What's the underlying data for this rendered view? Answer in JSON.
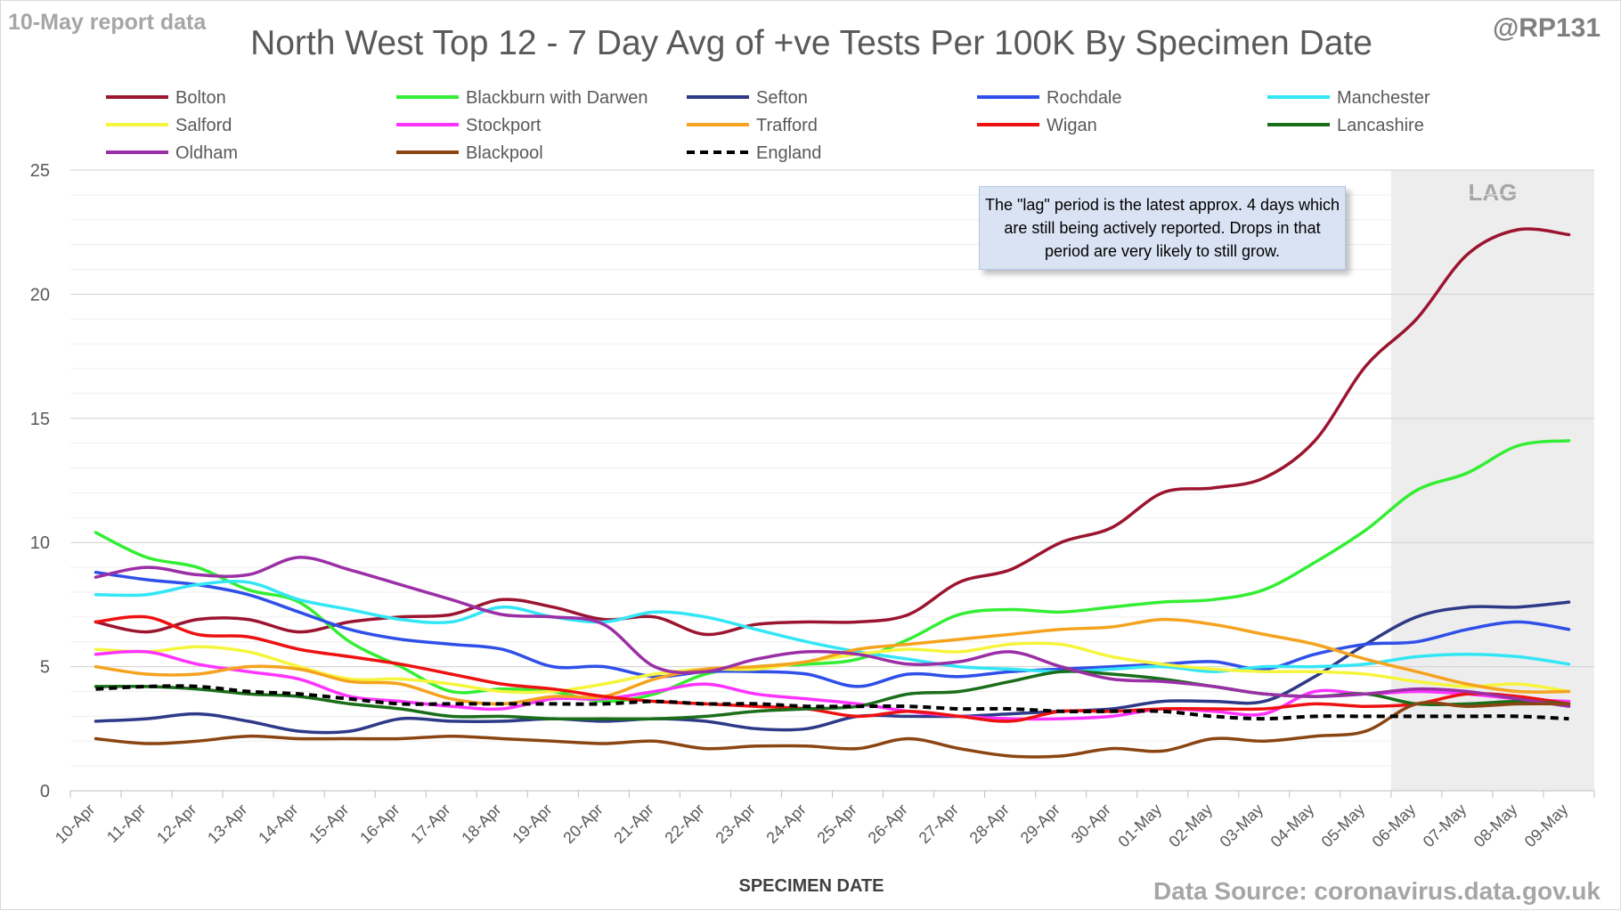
{
  "header": {
    "report_tag": "10-May report data",
    "handle": "@RP131",
    "source": "Data Source: coronavirus.data.gov.uk"
  },
  "note": {
    "text": "The \"lag\" period is the latest approx. 4 days which are still being actively reported.  Drops in that period are very likely to still grow."
  },
  "colors": {
    "grid": "#d9d9d9",
    "axis_text": "#595959",
    "lag_fill": "#ededed",
    "lag_text": "#a6a6a6"
  },
  "chart_data": {
    "type": "line",
    "title": "North West Top 12 - 7 Day Avg of +ve Tests Per 100K By Specimen Date",
    "xlabel": "SPECIMEN DATE",
    "ylabel": "",
    "ylim": [
      0,
      25
    ],
    "yticks": [
      0,
      5,
      10,
      15,
      20,
      25
    ],
    "grid": true,
    "legend_position": "top",
    "lag_label": "LAG",
    "lag_range": [
      "06-May",
      "09-May"
    ],
    "x": [
      "10-Apr",
      "11-Apr",
      "12-Apr",
      "13-Apr",
      "14-Apr",
      "15-Apr",
      "16-Apr",
      "17-Apr",
      "18-Apr",
      "19-Apr",
      "20-Apr",
      "21-Apr",
      "22-Apr",
      "23-Apr",
      "24-Apr",
      "25-Apr",
      "26-Apr",
      "27-Apr",
      "28-Apr",
      "29-Apr",
      "30-Apr",
      "01-May",
      "02-May",
      "03-May",
      "04-May",
      "05-May",
      "06-May",
      "07-May",
      "08-May",
      "09-May"
    ],
    "series": [
      {
        "name": "Bolton",
        "color": "#9b1530",
        "dash": false,
        "values": [
          6.8,
          6.4,
          6.9,
          6.9,
          6.4,
          6.8,
          7.0,
          7.1,
          7.7,
          7.4,
          6.9,
          7.0,
          6.3,
          6.7,
          6.8,
          6.8,
          7.1,
          8.4,
          8.9,
          10.0,
          10.6,
          12.0,
          12.2,
          12.6,
          14.1,
          17.1,
          19.0,
          21.6,
          22.6,
          22.4
        ]
      },
      {
        "name": "Blackburn with Darwen",
        "color": "#33ee33",
        "dash": false,
        "values": [
          10.4,
          9.4,
          9.0,
          8.1,
          7.6,
          6.0,
          5.0,
          4.0,
          4.1,
          4.0,
          3.6,
          3.9,
          4.7,
          5.0,
          5.1,
          5.3,
          6.1,
          7.1,
          7.3,
          7.2,
          7.4,
          7.6,
          7.7,
          8.1,
          9.2,
          10.5,
          12.1,
          12.8,
          13.9,
          14.1
        ]
      },
      {
        "name": "Sefton",
        "color": "#2e3a87",
        "dash": false,
        "values": [
          2.8,
          2.9,
          3.1,
          2.8,
          2.4,
          2.4,
          2.9,
          2.8,
          2.8,
          2.9,
          2.8,
          2.9,
          2.8,
          2.5,
          2.5,
          3.0,
          3.0,
          3.0,
          3.1,
          3.2,
          3.3,
          3.6,
          3.6,
          3.6,
          4.6,
          5.9,
          7.0,
          7.4,
          7.4,
          7.6
        ]
      },
      {
        "name": "Rochdale",
        "color": "#2f4fe8",
        "dash": false,
        "values": [
          8.8,
          8.5,
          8.3,
          7.9,
          7.2,
          6.5,
          6.1,
          5.9,
          5.7,
          5.0,
          5.0,
          4.6,
          4.8,
          4.8,
          4.7,
          4.2,
          4.7,
          4.6,
          4.8,
          4.9,
          5.0,
          5.1,
          5.2,
          4.9,
          5.5,
          5.9,
          6.0,
          6.5,
          6.8,
          6.5
        ]
      },
      {
        "name": "Manchester",
        "color": "#33e6f5",
        "dash": false,
        "values": [
          7.9,
          7.9,
          8.3,
          8.4,
          7.7,
          7.3,
          6.9,
          6.8,
          7.4,
          7.0,
          6.8,
          7.2,
          7.0,
          6.5,
          6.0,
          5.6,
          5.3,
          5.0,
          4.9,
          4.8,
          4.9,
          5.0,
          4.8,
          5.0,
          5.0,
          5.1,
          5.4,
          5.5,
          5.4,
          5.1
        ]
      },
      {
        "name": "Salford",
        "color": "#f5f53d",
        "dash": false,
        "values": [
          5.7,
          5.6,
          5.8,
          5.6,
          5.0,
          4.5,
          4.5,
          4.3,
          4.0,
          4.0,
          4.3,
          4.7,
          4.9,
          4.9,
          5.2,
          5.5,
          5.7,
          5.6,
          5.9,
          5.9,
          5.4,
          5.1,
          4.9,
          4.8,
          4.8,
          4.7,
          4.4,
          4.2,
          4.3,
          4.0
        ]
      },
      {
        "name": "Stockport",
        "color": "#ff33ff",
        "dash": false,
        "values": [
          5.5,
          5.6,
          5.1,
          4.8,
          4.5,
          3.8,
          3.6,
          3.4,
          3.3,
          3.7,
          3.7,
          4.0,
          4.3,
          3.9,
          3.7,
          3.5,
          3.2,
          3.0,
          2.9,
          2.9,
          3.0,
          3.3,
          3.2,
          3.1,
          4.0,
          3.9,
          4.0,
          3.9,
          3.7,
          3.6
        ]
      },
      {
        "name": "Trafford",
        "color": "#f5a31f",
        "dash": false,
        "values": [
          5.0,
          4.7,
          4.7,
          5.0,
          4.9,
          4.4,
          4.3,
          3.7,
          3.5,
          3.8,
          3.8,
          4.5,
          4.9,
          5.0,
          5.2,
          5.7,
          5.9,
          6.1,
          6.3,
          6.5,
          6.6,
          6.9,
          6.7,
          6.3,
          5.9,
          5.3,
          4.8,
          4.3,
          4.0,
          4.0
        ]
      },
      {
        "name": "Wigan",
        "color": "#ee1111",
        "dash": false,
        "values": [
          6.8,
          7.0,
          6.3,
          6.2,
          5.7,
          5.4,
          5.1,
          4.7,
          4.3,
          4.1,
          3.8,
          3.6,
          3.5,
          3.4,
          3.3,
          3.0,
          3.2,
          3.0,
          2.8,
          3.2,
          3.2,
          3.3,
          3.3,
          3.3,
          3.5,
          3.4,
          3.5,
          3.9,
          3.8,
          3.5
        ]
      },
      {
        "name": "Lancashire",
        "color": "#1a6e1a",
        "dash": false,
        "values": [
          4.2,
          4.2,
          4.1,
          3.9,
          3.8,
          3.5,
          3.3,
          3.0,
          3.0,
          2.9,
          2.9,
          2.9,
          3.0,
          3.2,
          3.3,
          3.4,
          3.9,
          4.0,
          4.4,
          4.8,
          4.7,
          4.5,
          4.2,
          3.9,
          3.8,
          3.9,
          3.5,
          3.5,
          3.6,
          3.5
        ]
      },
      {
        "name": "Oldham",
        "color": "#9b2fa6",
        "dash": false,
        "values": [
          8.6,
          9.0,
          8.7,
          8.7,
          9.4,
          8.9,
          8.3,
          7.7,
          7.1,
          7.0,
          6.7,
          5.0,
          4.8,
          5.3,
          5.6,
          5.5,
          5.1,
          5.2,
          5.6,
          5.0,
          4.5,
          4.4,
          4.2,
          3.9,
          3.8,
          3.9,
          4.1,
          4.0,
          3.7,
          3.4
        ]
      },
      {
        "name": "Blackpool",
        "color": "#8b4513",
        "dash": false,
        "values": [
          2.1,
          1.9,
          2.0,
          2.2,
          2.1,
          2.1,
          2.1,
          2.2,
          2.1,
          2.0,
          1.9,
          2.0,
          1.7,
          1.8,
          1.8,
          1.7,
          2.1,
          1.7,
          1.4,
          1.4,
          1.7,
          1.6,
          2.1,
          2.0,
          2.2,
          2.4,
          3.5,
          3.4,
          3.5,
          3.5
        ]
      },
      {
        "name": "England",
        "color": "#000000",
        "dash": true,
        "values": [
          4.1,
          4.2,
          4.2,
          4.0,
          3.9,
          3.7,
          3.5,
          3.5,
          3.5,
          3.5,
          3.5,
          3.6,
          3.5,
          3.5,
          3.4,
          3.4,
          3.4,
          3.3,
          3.3,
          3.2,
          3.2,
          3.2,
          3.0,
          2.9,
          3.0,
          3.0,
          3.0,
          3.0,
          3.0,
          2.9
        ]
      }
    ]
  }
}
